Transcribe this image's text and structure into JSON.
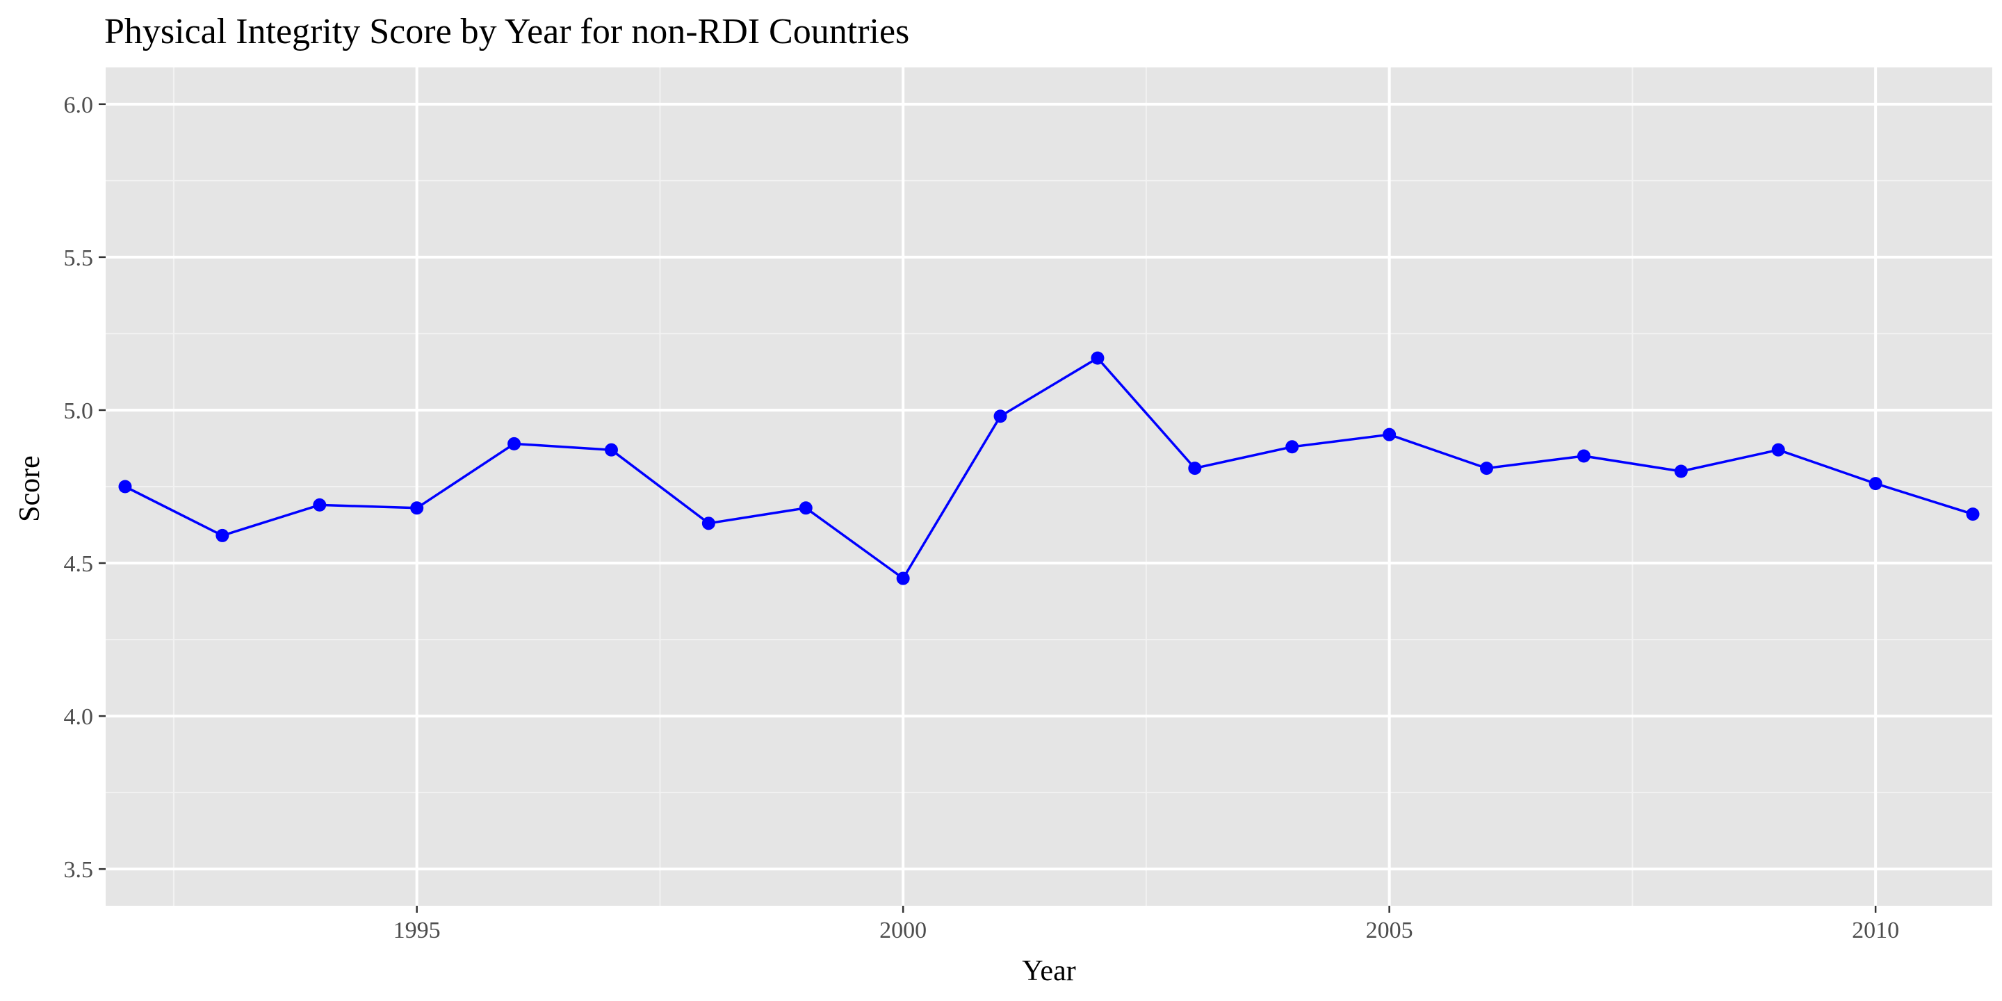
{
  "chart_data": {
    "type": "line",
    "title": "Physical Integrity Score by Year for non-RDI Countries",
    "xlabel": "Year",
    "ylabel": "Score",
    "xlim": [
      1991.8,
      2011.2
    ],
    "ylim": [
      3.38,
      6.12
    ],
    "x_ticks": [
      1995,
      2000,
      2005,
      2010
    ],
    "x_tick_labels": [
      "1995",
      "2000",
      "2005",
      "2010"
    ],
    "y_ticks": [
      3.5,
      4.0,
      4.5,
      5.0,
      5.5,
      6.0
    ],
    "y_tick_labels": [
      "3.5",
      "4.0",
      "4.5",
      "5.0",
      "5.5",
      "6.0"
    ],
    "grid": true,
    "legend": "none",
    "series": [
      {
        "color": "#0000ff",
        "x": [
          1992,
          1993,
          1994,
          1995,
          1996,
          1997,
          1998,
          1999,
          2000,
          2001,
          2002,
          2003,
          2004,
          2005,
          2006,
          2007,
          2008,
          2009,
          2010,
          2011
        ],
        "values": [
          4.75,
          4.59,
          4.69,
          4.68,
          4.89,
          4.87,
          4.63,
          4.68,
          4.45,
          4.98,
          5.17,
          4.81,
          4.88,
          4.92,
          4.81,
          4.85,
          4.8,
          4.87,
          4.76,
          4.66
        ]
      }
    ],
    "colors": {
      "panel_background": "#e5e5e5",
      "grid_major": "#ffffff",
      "grid_minor": "#f2f2f2",
      "tick_label": "#4d4d4d",
      "tick_mark": "#333333"
    }
  }
}
